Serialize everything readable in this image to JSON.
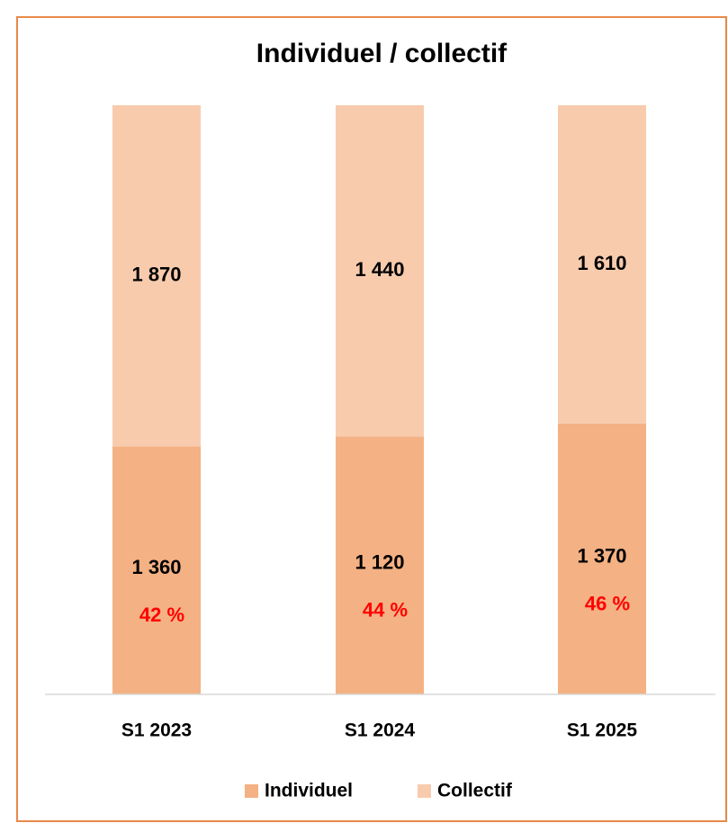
{
  "chart_data": {
    "type": "stacked_bar_percent",
    "title": "Individuel / collectif",
    "categories": [
      "S1 2023",
      "S1 2024",
      "S1 2025"
    ],
    "series": [
      {
        "name": "Individuel",
        "color": "#f4b183",
        "values": [
          1360,
          1120,
          1370
        ],
        "value_labels": [
          "1 360",
          "1 120",
          "1 370"
        ]
      },
      {
        "name": "Collectif",
        "color": "#f8cbad",
        "values": [
          1870,
          1440,
          1610
        ],
        "value_labels": [
          "1 870",
          "1 440",
          "1 610"
        ]
      }
    ],
    "annotations": [
      "42 %",
      "44 %",
      "46 %"
    ],
    "annotation_color": "#ff0000",
    "legend": "bottom"
  }
}
